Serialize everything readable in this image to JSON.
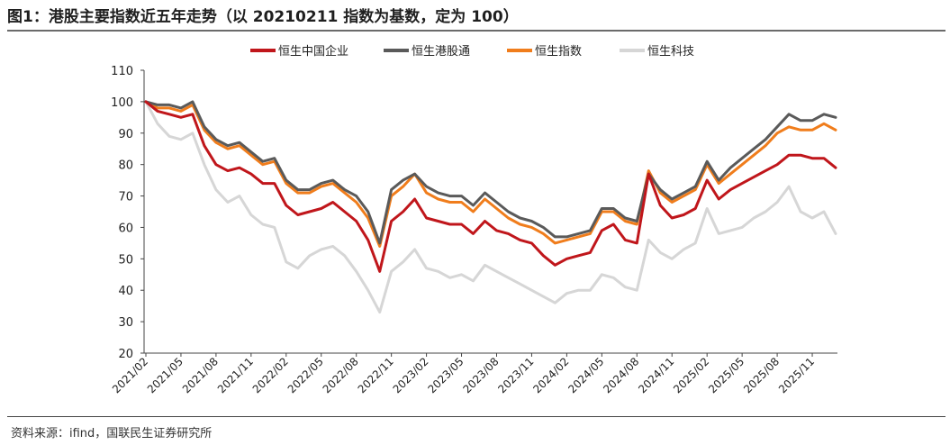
{
  "title": "图1：港股主要指数近五年走势（以 20210211 指数为基数，定为 100）",
  "source": "资料来源：ifind，国联民生证券研究所",
  "colors": {
    "hscei": "#c0161b",
    "hsci_connect": "#5a5a5a",
    "hsi": "#f07d1c",
    "hstech": "#d6d6d6",
    "axis": "#444444"
  },
  "chart_data": {
    "type": "line",
    "title": "港股主要指数近五年走势（以 20210211 指数为基数，定为 100）",
    "xlabel": "",
    "ylabel": "",
    "ylim": [
      20,
      110
    ],
    "yticks": [
      20,
      30,
      40,
      50,
      60,
      70,
      80,
      90,
      100,
      110
    ],
    "xticks": [
      "2021/02",
      "2021/05",
      "2021/08",
      "2021/11",
      "2022/02",
      "2022/05",
      "2022/08",
      "2022/11",
      "2023/02",
      "2023/05",
      "2023/08",
      "2023/11",
      "2024/02",
      "2024/05",
      "2024/08",
      "2024/11",
      "2025/02",
      "2025/05",
      "2025/08",
      "2025/11"
    ],
    "x": [
      "2021/02",
      "2021/03",
      "2021/04",
      "2021/05",
      "2021/06",
      "2021/07",
      "2021/08",
      "2021/09",
      "2021/10",
      "2021/11",
      "2021/12",
      "2022/01",
      "2022/02",
      "2022/03",
      "2022/04",
      "2022/05",
      "2022/06",
      "2022/07",
      "2022/08",
      "2022/09",
      "2022/10",
      "2022/11",
      "2022/12",
      "2023/01",
      "2023/02",
      "2023/03",
      "2023/04",
      "2023/05",
      "2023/06",
      "2023/07",
      "2023/08",
      "2023/09",
      "2023/10",
      "2023/11",
      "2023/12",
      "2024/01",
      "2024/02",
      "2024/03",
      "2024/04",
      "2024/05",
      "2024/06",
      "2024/07",
      "2024/08",
      "2024/09",
      "2024/10",
      "2024/11",
      "2024/12",
      "2025/01",
      "2025/02",
      "2025/03",
      "2025/04",
      "2025/05",
      "2025/06",
      "2025/07",
      "2025/08",
      "2025/09",
      "2025/10",
      "2025/11",
      "2025/12",
      "2026/01"
    ],
    "legend": "top-center",
    "series": [
      {
        "name": "恒生中国企业",
        "key": "hscei",
        "values": [
          100,
          97,
          96,
          95,
          96,
          86,
          80,
          78,
          79,
          77,
          74,
          74,
          67,
          64,
          65,
          66,
          68,
          65,
          62,
          56,
          46,
          62,
          65,
          69,
          63,
          62,
          61,
          61,
          58,
          62,
          59,
          58,
          56,
          55,
          51,
          48,
          50,
          51,
          52,
          59,
          61,
          56,
          55,
          77,
          67,
          63,
          64,
          66,
          75,
          69,
          72,
          74,
          76,
          78,
          80,
          83,
          83,
          82,
          82,
          79
        ]
      },
      {
        "name": "恒生港股通",
        "key": "hsci_connect",
        "values": [
          100,
          99,
          99,
          98,
          100,
          92,
          88,
          86,
          87,
          84,
          81,
          82,
          75,
          72,
          72,
          74,
          75,
          72,
          70,
          65,
          55,
          72,
          75,
          77,
          73,
          71,
          70,
          70,
          67,
          71,
          68,
          65,
          63,
          62,
          60,
          57,
          57,
          58,
          59,
          66,
          66,
          63,
          62,
          77,
          72,
          69,
          71,
          73,
          81,
          75,
          79,
          82,
          85,
          88,
          92,
          96,
          94,
          94,
          96,
          95
        ]
      },
      {
        "name": "恒生指数",
        "key": "hsi",
        "values": [
          100,
          98,
          98,
          97,
          99,
          91,
          87,
          85,
          86,
          83,
          80,
          81,
          74,
          71,
          71,
          73,
          74,
          71,
          68,
          63,
          54,
          70,
          73,
          77,
          71,
          69,
          68,
          68,
          65,
          69,
          66,
          63,
          61,
          60,
          58,
          55,
          56,
          57,
          58,
          65,
          65,
          62,
          61,
          78,
          71,
          68,
          70,
          72,
          80,
          74,
          77,
          80,
          83,
          86,
          90,
          92,
          91,
          91,
          93,
          91
        ]
      },
      {
        "name": "恒生科技",
        "key": "hstech",
        "values": [
          100,
          93,
          89,
          88,
          90,
          80,
          72,
          68,
          70,
          64,
          61,
          60,
          49,
          47,
          51,
          53,
          54,
          51,
          46,
          40,
          33,
          46,
          49,
          53,
          47,
          46,
          44,
          45,
          43,
          48,
          46,
          44,
          42,
          40,
          38,
          36,
          39,
          40,
          40,
          45,
          44,
          41,
          40,
          56,
          52,
          50,
          53,
          55,
          66,
          58,
          59,
          60,
          63,
          65,
          68,
          73,
          65,
          63,
          65,
          58
        ]
      }
    ]
  }
}
